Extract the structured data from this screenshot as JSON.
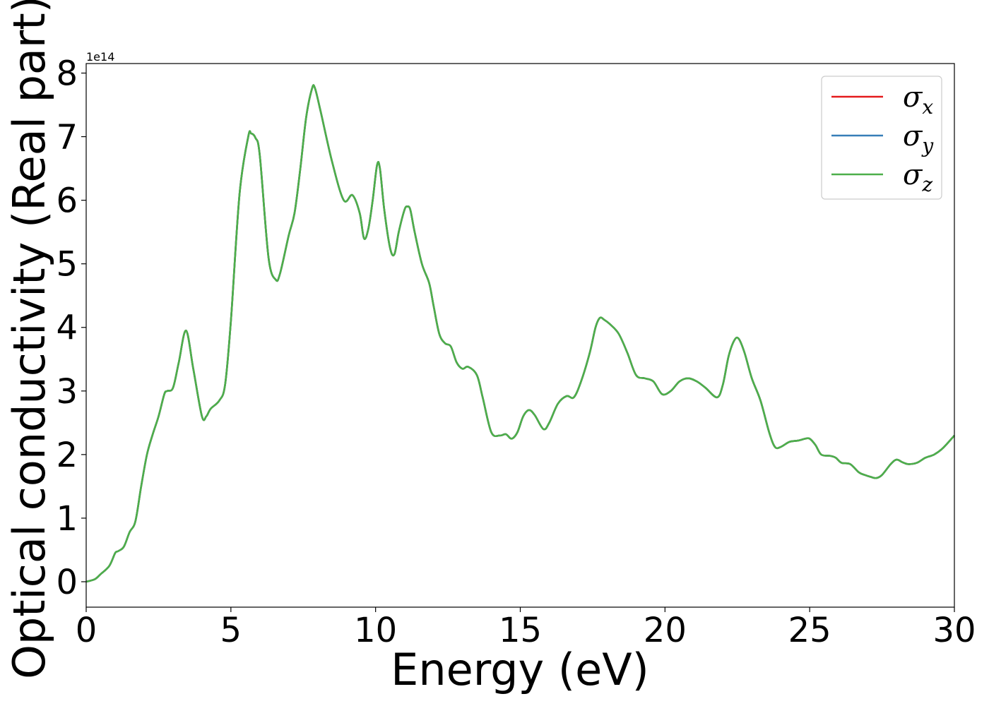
{
  "chart_data": {
    "type": "line",
    "title": "",
    "xlabel": "Energy (eV)",
    "ylabel": "Optical conductivity (Real part)",
    "y_offset_text": "1e14",
    "y_scale_factor": 100000000000000.0,
    "xlim": [
      0,
      30
    ],
    "ylim": [
      -0.4,
      8.15
    ],
    "xticks": [
      0,
      5,
      10,
      15,
      20,
      25,
      30
    ],
    "xtick_labels": [
      "0",
      "5",
      "10",
      "15",
      "20",
      "25",
      "30"
    ],
    "yticks": [
      0,
      1,
      2,
      3,
      4,
      5,
      6,
      7,
      8
    ],
    "ytick_labels": [
      "0",
      "1",
      "2",
      "3",
      "4",
      "5",
      "6",
      "7",
      "8"
    ],
    "grid": false,
    "legend_position": "top-right",
    "x": [
      0,
      0.3,
      0.5,
      0.8,
      1.0,
      1.1,
      1.3,
      1.5,
      1.7,
      1.9,
      2.1,
      2.3,
      2.5,
      2.7,
      2.8,
      3.0,
      3.2,
      3.45,
      3.7,
      4.0,
      4.15,
      4.3,
      4.6,
      4.8,
      5.0,
      5.3,
      5.6,
      5.7,
      5.85,
      6.0,
      6.3,
      6.55,
      6.7,
      7.0,
      7.2,
      7.4,
      7.6,
      7.8,
      7.9,
      8.1,
      8.5,
      8.9,
      9.2,
      9.45,
      9.6,
      9.75,
      9.9,
      10.05,
      10.15,
      10.3,
      10.5,
      10.65,
      10.8,
      11.0,
      11.1,
      11.2,
      11.35,
      11.6,
      11.85,
      12.0,
      12.2,
      12.4,
      12.6,
      12.8,
      13.0,
      13.2,
      13.5,
      13.7,
      14.0,
      14.3,
      14.5,
      14.7,
      14.9,
      15.1,
      15.3,
      15.5,
      15.8,
      16.0,
      16.3,
      16.6,
      16.85,
      17.1,
      17.4,
      17.6,
      17.75,
      17.9,
      18.1,
      18.4,
      18.7,
      19.0,
      19.3,
      19.6,
      19.9,
      20.2,
      20.5,
      20.8,
      21.1,
      21.4,
      21.8,
      22.0,
      22.2,
      22.4,
      22.55,
      22.75,
      23.0,
      23.3,
      23.6,
      23.8,
      24.0,
      24.3,
      24.6,
      24.85,
      25.0,
      25.2,
      25.4,
      25.7,
      25.9,
      26.1,
      26.4,
      26.7,
      26.9,
      27.1,
      27.3,
      27.5,
      27.8,
      28.0,
      28.2,
      28.4,
      28.7,
      29.0,
      29.3,
      29.6,
      30.0
    ],
    "series": [
      {
        "name": "σx",
        "color": "#e41a1c",
        "values": [
          0.0,
          0.04,
          0.12,
          0.25,
          0.45,
          0.48,
          0.55,
          0.78,
          0.95,
          1.5,
          2.0,
          2.32,
          2.6,
          2.95,
          3.0,
          3.05,
          3.45,
          3.95,
          3.35,
          2.6,
          2.6,
          2.72,
          2.85,
          3.1,
          4.1,
          6.1,
          7.0,
          7.05,
          6.98,
          6.7,
          5.1,
          4.75,
          4.85,
          5.45,
          5.8,
          6.5,
          7.3,
          7.75,
          7.77,
          7.4,
          6.6,
          6.0,
          6.08,
          5.8,
          5.4,
          5.55,
          6.0,
          6.55,
          6.5,
          5.85,
          5.25,
          5.15,
          5.5,
          5.85,
          5.9,
          5.85,
          5.5,
          5.0,
          4.7,
          4.35,
          3.9,
          3.75,
          3.7,
          3.45,
          3.35,
          3.38,
          3.25,
          2.9,
          2.35,
          2.3,
          2.32,
          2.25,
          2.35,
          2.6,
          2.7,
          2.62,
          2.4,
          2.5,
          2.8,
          2.92,
          2.9,
          3.15,
          3.6,
          4.0,
          4.15,
          4.12,
          4.05,
          3.9,
          3.6,
          3.25,
          3.2,
          3.15,
          2.95,
          3.0,
          3.15,
          3.2,
          3.15,
          3.05,
          2.9,
          3.1,
          3.55,
          3.8,
          3.82,
          3.6,
          3.2,
          2.85,
          2.35,
          2.12,
          2.12,
          2.2,
          2.22,
          2.25,
          2.25,
          2.15,
          2.0,
          1.98,
          1.95,
          1.87,
          1.85,
          1.72,
          1.68,
          1.65,
          1.63,
          1.68,
          1.85,
          1.92,
          1.88,
          1.85,
          1.87,
          1.95,
          2.0,
          2.1,
          2.3
        ]
      },
      {
        "name": "σy",
        "color": "#377eb8",
        "values": [
          0.0,
          0.04,
          0.12,
          0.25,
          0.45,
          0.48,
          0.55,
          0.78,
          0.95,
          1.5,
          2.0,
          2.32,
          2.6,
          2.95,
          3.0,
          3.05,
          3.45,
          3.95,
          3.35,
          2.6,
          2.6,
          2.72,
          2.85,
          3.1,
          4.1,
          6.1,
          7.0,
          7.05,
          6.98,
          6.7,
          5.1,
          4.75,
          4.85,
          5.45,
          5.8,
          6.5,
          7.3,
          7.75,
          7.77,
          7.4,
          6.6,
          6.0,
          6.08,
          5.8,
          5.4,
          5.55,
          6.0,
          6.55,
          6.5,
          5.85,
          5.25,
          5.15,
          5.5,
          5.85,
          5.9,
          5.85,
          5.5,
          5.0,
          4.7,
          4.35,
          3.9,
          3.75,
          3.7,
          3.45,
          3.35,
          3.38,
          3.25,
          2.9,
          2.35,
          2.3,
          2.32,
          2.25,
          2.35,
          2.6,
          2.7,
          2.62,
          2.4,
          2.5,
          2.8,
          2.92,
          2.9,
          3.15,
          3.6,
          4.0,
          4.15,
          4.12,
          4.05,
          3.9,
          3.6,
          3.25,
          3.2,
          3.15,
          2.95,
          3.0,
          3.15,
          3.2,
          3.15,
          3.05,
          2.9,
          3.1,
          3.55,
          3.8,
          3.82,
          3.6,
          3.2,
          2.85,
          2.35,
          2.12,
          2.12,
          2.2,
          2.22,
          2.25,
          2.25,
          2.15,
          2.0,
          1.98,
          1.95,
          1.87,
          1.85,
          1.72,
          1.68,
          1.65,
          1.63,
          1.68,
          1.85,
          1.92,
          1.88,
          1.85,
          1.87,
          1.95,
          2.0,
          2.1,
          2.3
        ]
      },
      {
        "name": "σz",
        "color": "#4daf4a",
        "values": [
          0.0,
          0.04,
          0.12,
          0.25,
          0.45,
          0.48,
          0.55,
          0.78,
          0.95,
          1.5,
          2.0,
          2.32,
          2.6,
          2.95,
          3.0,
          3.05,
          3.45,
          3.95,
          3.35,
          2.6,
          2.6,
          2.72,
          2.85,
          3.1,
          4.1,
          6.1,
          7.0,
          7.05,
          6.98,
          6.7,
          5.1,
          4.75,
          4.85,
          5.45,
          5.8,
          6.5,
          7.3,
          7.75,
          7.77,
          7.4,
          6.6,
          6.0,
          6.08,
          5.8,
          5.4,
          5.55,
          6.0,
          6.55,
          6.5,
          5.85,
          5.25,
          5.15,
          5.5,
          5.85,
          5.9,
          5.85,
          5.5,
          5.0,
          4.7,
          4.35,
          3.9,
          3.75,
          3.7,
          3.45,
          3.35,
          3.38,
          3.25,
          2.9,
          2.35,
          2.3,
          2.32,
          2.25,
          2.35,
          2.6,
          2.7,
          2.62,
          2.4,
          2.5,
          2.8,
          2.92,
          2.9,
          3.15,
          3.6,
          4.0,
          4.15,
          4.12,
          4.05,
          3.9,
          3.6,
          3.25,
          3.2,
          3.15,
          2.95,
          3.0,
          3.15,
          3.2,
          3.15,
          3.05,
          2.9,
          3.1,
          3.55,
          3.8,
          3.82,
          3.6,
          3.2,
          2.85,
          2.35,
          2.12,
          2.12,
          2.2,
          2.22,
          2.25,
          2.25,
          2.15,
          2.0,
          1.98,
          1.95,
          1.87,
          1.85,
          1.72,
          1.68,
          1.65,
          1.63,
          1.68,
          1.85,
          1.92,
          1.88,
          1.85,
          1.87,
          1.95,
          2.0,
          2.1,
          2.3
        ]
      }
    ],
    "legend": [
      {
        "symbol": "σ",
        "subscript": "x",
        "color": "#e41a1c"
      },
      {
        "symbol": "σ",
        "subscript": "y",
        "color": "#377eb8"
      },
      {
        "symbol": "σ",
        "subscript": "z",
        "color": "#4daf4a"
      }
    ]
  }
}
